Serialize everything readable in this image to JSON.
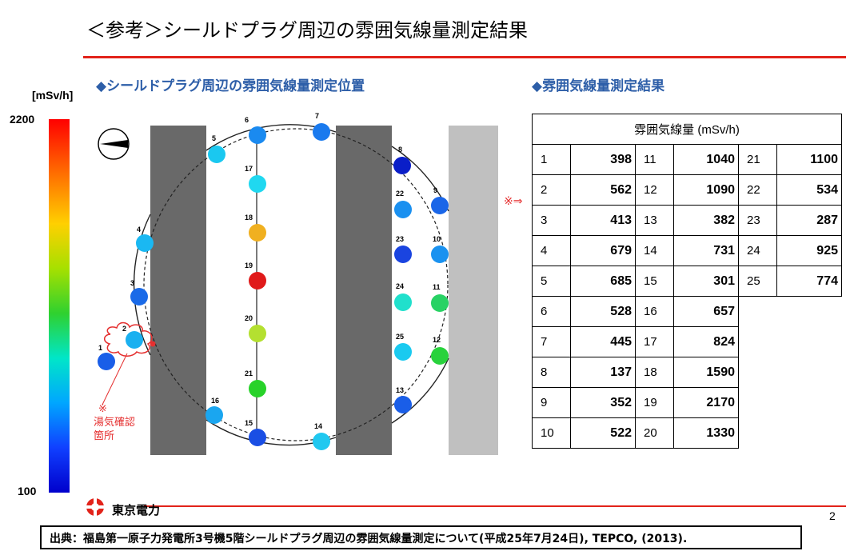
{
  "title": "＜参考＞シールドプラグ周辺の雰囲気線量測定結果",
  "left_section": "◆シールドプラグ周辺の雰囲気線量測定位置",
  "right_section": "◆雰囲気線量測定結果",
  "scale": {
    "unit": "[mSv/h]",
    "max": "2200",
    "min": "100"
  },
  "steam": {
    "mark": "※",
    "line1": "湯気確認",
    "line2": "箇所"
  },
  "marker_arrow": "※⇒",
  "table": {
    "header": "雰囲気線量 (mSv/h)",
    "rows": [
      [
        {
          "p": "1",
          "v": "398"
        },
        {
          "p": "11",
          "v": "1040"
        },
        {
          "p": "21",
          "v": "1100"
        }
      ],
      [
        {
          "p": "2",
          "v": "562"
        },
        {
          "p": "12",
          "v": "1090"
        },
        {
          "p": "22",
          "v": "534"
        }
      ],
      [
        {
          "p": "3",
          "v": "413"
        },
        {
          "p": "13",
          "v": "382"
        },
        {
          "p": "23",
          "v": "287"
        }
      ],
      [
        {
          "p": "4",
          "v": "679"
        },
        {
          "p": "14",
          "v": "731"
        },
        {
          "p": "24",
          "v": "925"
        }
      ],
      [
        {
          "p": "5",
          "v": "685"
        },
        {
          "p": "15",
          "v": "301"
        },
        {
          "p": "25",
          "v": "774"
        }
      ],
      [
        {
          "p": "6",
          "v": "528"
        },
        {
          "p": "16",
          "v": "657"
        }
      ],
      [
        {
          "p": "7",
          "v": "445"
        },
        {
          "p": "17",
          "v": "824"
        }
      ],
      [
        {
          "p": "8",
          "v": "137"
        },
        {
          "p": "18",
          "v": "1590"
        }
      ],
      [
        {
          "p": "9",
          "v": "352"
        },
        {
          "p": "19",
          "v": "2170"
        }
      ],
      [
        {
          "p": "10",
          "v": "522"
        },
        {
          "p": "20",
          "v": "1330"
        }
      ]
    ]
  },
  "points": [
    {
      "id": "1",
      "color": "#1a5ee8"
    },
    {
      "id": "2",
      "color": "#1ab0f0"
    },
    {
      "id": "3",
      "color": "#1a6ae8"
    },
    {
      "id": "4",
      "color": "#1ab8f2"
    },
    {
      "id": "5",
      "color": "#1ac8f0"
    },
    {
      "id": "6",
      "color": "#1a8af0"
    },
    {
      "id": "7",
      "color": "#1a7aee"
    },
    {
      "id": "8",
      "color": "#0a1ec8"
    },
    {
      "id": "9",
      "color": "#1a66e8"
    },
    {
      "id": "10",
      "color": "#1a92f0"
    },
    {
      "id": "11",
      "color": "#28d264"
    },
    {
      "id": "12",
      "color": "#28d23c"
    },
    {
      "id": "13",
      "color": "#1a5ee8"
    },
    {
      "id": "14",
      "color": "#20c8f0"
    },
    {
      "id": "15",
      "color": "#1a4ee4"
    },
    {
      "id": "16",
      "color": "#1aa6f0"
    },
    {
      "id": "17",
      "color": "#20d8f0"
    },
    {
      "id": "18",
      "color": "#f0b020"
    },
    {
      "id": "19",
      "color": "#e01a1a"
    },
    {
      "id": "20",
      "color": "#b4e030"
    },
    {
      "id": "21",
      "color": "#28d22a"
    },
    {
      "id": "22",
      "color": "#1a90f0"
    },
    {
      "id": "23",
      "color": "#1a44e0"
    },
    {
      "id": "24",
      "color": "#20e0cc"
    },
    {
      "id": "25",
      "color": "#1acaf0"
    }
  ],
  "logo": "東京電力",
  "page_number": "2",
  "source": "出典：福島第一原子力発電所3号機5階シールドプラグ周辺の雰囲気線量測定について(平成25年7月24日), TEPCO, (2013)."
}
